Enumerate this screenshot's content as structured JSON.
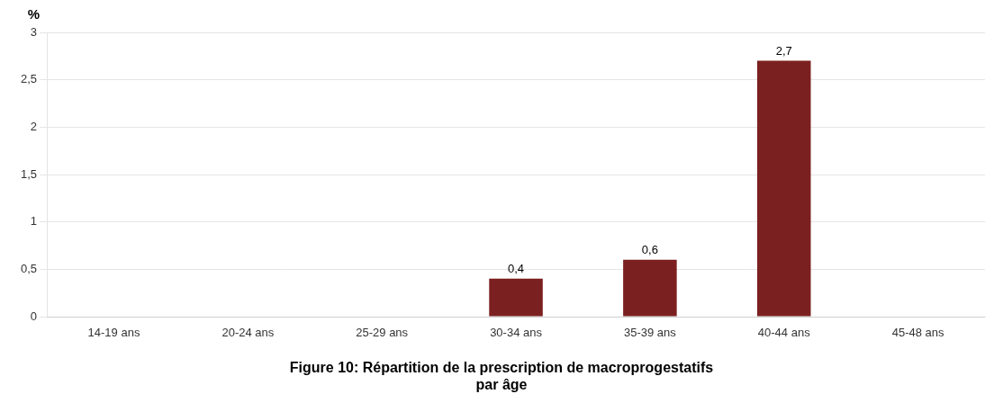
{
  "chart_data": {
    "type": "bar",
    "title": [
      "Figure 10: Répartition de la prescription de macroprogestatifs",
      "par âge"
    ],
    "ylabel": "%",
    "categories": [
      "14-19 ans",
      "20-24 ans",
      "25-29 ans",
      "30-34 ans",
      "35-39 ans",
      "40-44 ans",
      "45-48 ans"
    ],
    "values": [
      0,
      0,
      0,
      0.4,
      0.6,
      2.7,
      0
    ],
    "value_labels": [
      null,
      null,
      null,
      "0,4",
      "0,6",
      "2,7",
      null
    ],
    "data_labels": true,
    "color": "#7B2020",
    "ylim": [
      0,
      3
    ],
    "yticks": [
      0,
      {
        "value": 0.5,
        "label": "0,5"
      },
      1,
      {
        "value": 1.5,
        "label": "1,5"
      },
      2,
      {
        "value": 2.5,
        "label": "2,5"
      },
      3
    ],
    "grid": true
  }
}
